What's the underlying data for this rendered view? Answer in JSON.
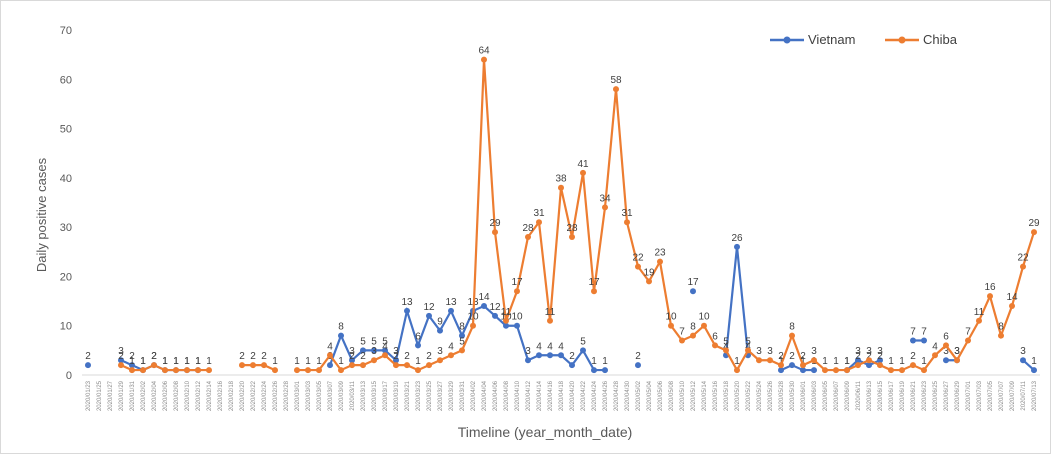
{
  "chart_data": {
    "type": "line",
    "y_label": "Daily positive cases",
    "x_label": "Timeline (year_month_date)",
    "categories": [
      "2020/01/23",
      "2020/01/25",
      "2020/01/27",
      "2020/01/29",
      "2020/01/31",
      "2020/02/02",
      "2020/02/04",
      "2020/02/06",
      "2020/02/08",
      "2020/02/10",
      "2020/02/12",
      "2020/02/14",
      "2020/02/16",
      "2020/02/18",
      "2020/02/20",
      "2020/02/22",
      "2020/02/24",
      "2020/02/26",
      "2020/02/28",
      "2020/03/01",
      "2020/03/03",
      "2020/03/05",
      "2020/03/07",
      "2020/03/09",
      "2020/03/11",
      "2020/03/13",
      "2020/03/15",
      "2020/03/17",
      "2020/03/19",
      "2020/03/21",
      "2020/03/23",
      "2020/03/25",
      "2020/03/27",
      "2020/03/29",
      "2020/03/31",
      "2020/04/02",
      "2020/04/04",
      "2020/04/06",
      "2020/04/08",
      "2020/04/10",
      "2020/04/12",
      "2020/04/14",
      "2020/04/16",
      "2020/04/18",
      "2020/04/20",
      "2020/04/22",
      "2020/04/24",
      "2020/04/26",
      "2020/04/28",
      "2020/04/30",
      "2020/05/02",
      "2020/05/04",
      "2020/05/06",
      "2020/05/08",
      "2020/05/10",
      "2020/05/12",
      "2020/05/14",
      "2020/05/16",
      "2020/05/18",
      "2020/05/20",
      "2020/05/22",
      "2020/05/24",
      "2020/05/26",
      "2020/05/28",
      "2020/05/30",
      "2020/06/01",
      "2020/06/03",
      "2020/06/05",
      "2020/06/07",
      "2020/06/09",
      "2020/06/11",
      "2020/06/13",
      "2020/06/15",
      "2020/06/17",
      "2020/06/19",
      "2020/06/21",
      "2020/06/23",
      "2020/06/25",
      "2020/06/27",
      "2020/06/29",
      "2020/07/01",
      "2020/07/03",
      "2020/07/05",
      "2020/07/07",
      "2020/07/09",
      "2020/07/11",
      "2020/07/13"
    ],
    "series": [
      {
        "name": "Vietnam",
        "color": "#4472c4",
        "values": [
          2,
          null,
          null,
          3,
          2,
          1,
          2,
          1,
          1,
          1,
          1,
          null,
          null,
          null,
          null,
          null,
          null,
          null,
          null,
          null,
          null,
          null,
          2,
          8,
          3,
          5,
          5,
          5,
          3,
          13,
          6,
          12,
          9,
          13,
          8,
          13,
          14,
          12,
          10,
          10,
          3,
          4,
          4,
          4,
          2,
          5,
          1,
          1,
          null,
          null,
          2,
          null,
          null,
          null,
          null,
          17,
          null,
          null,
          4,
          26,
          4,
          null,
          null,
          1,
          2,
          1,
          1,
          null,
          null,
          1,
          3,
          2,
          3,
          null,
          null,
          7,
          7,
          null,
          3,
          3,
          null,
          null,
          null,
          null,
          null,
          3,
          1
        ]
      },
      {
        "name": "Chiba",
        "color": "#ed7d31",
        "values": [
          null,
          null,
          null,
          2,
          1,
          1,
          2,
          1,
          1,
          1,
          1,
          1,
          null,
          null,
          2,
          2,
          2,
          1,
          null,
          1,
          1,
          1,
          4,
          1,
          2,
          2,
          3,
          4,
          2,
          2,
          1,
          2,
          3,
          4,
          5,
          10,
          64,
          29,
          11,
          17,
          28,
          31,
          11,
          38,
          28,
          41,
          17,
          34,
          58,
          31,
          22,
          19,
          23,
          10,
          7,
          8,
          10,
          6,
          5,
          1,
          5,
          3,
          3,
          2,
          8,
          2,
          3,
          1,
          1,
          1,
          2,
          3,
          2,
          1,
          1,
          2,
          1,
          4,
          6,
          3,
          7,
          11,
          16,
          8,
          14,
          22,
          29
        ]
      }
    ],
    "ylim": [
      0,
      70
    ],
    "yticks": [
      0,
      10,
      20,
      30,
      40,
      50,
      60,
      70
    ],
    "legend": "top-right"
  }
}
